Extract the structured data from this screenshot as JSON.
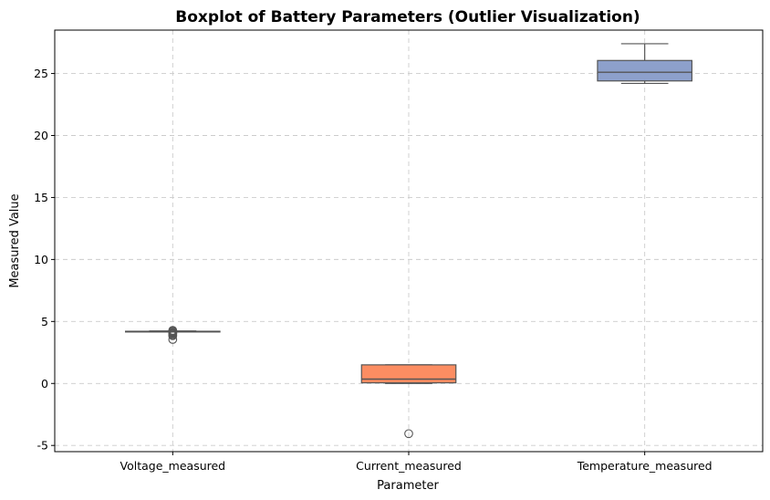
{
  "chart_data": {
    "type": "box",
    "title": "Boxplot of Battery Parameters (Outlier Visualization)",
    "xlabel": "Parameter",
    "ylabel": "Measured Value",
    "ylim": [
      -5.5,
      28.5
    ],
    "yticks": [
      -5,
      0,
      5,
      10,
      15,
      20,
      25
    ],
    "grid": true,
    "categories": [
      "Voltage_measured",
      "Current_measured",
      "Temperature_measured"
    ],
    "series": [
      {
        "category": "Voltage_measured",
        "color": "#66c2a5",
        "whisker_low": 4.17,
        "q1": 4.19,
        "median": 4.2,
        "q3": 4.21,
        "whisker_high": 4.23,
        "outliers": [
          4.28,
          4.22,
          4.15,
          4.1,
          4.05,
          4.0,
          3.92,
          3.85,
          3.55
        ]
      },
      {
        "category": "Current_measured",
        "color": "#fc8d62",
        "whisker_low": 0.0,
        "q1": 0.05,
        "median": 0.35,
        "q3": 1.5,
        "whisker_high": 1.5,
        "outliers": [
          -4.05
        ]
      },
      {
        "category": "Temperature_measured",
        "color": "#8da0cb",
        "whisker_low": 24.2,
        "q1": 24.4,
        "median": 25.1,
        "q3": 26.05,
        "whisker_high": 27.4,
        "outliers": []
      }
    ]
  }
}
